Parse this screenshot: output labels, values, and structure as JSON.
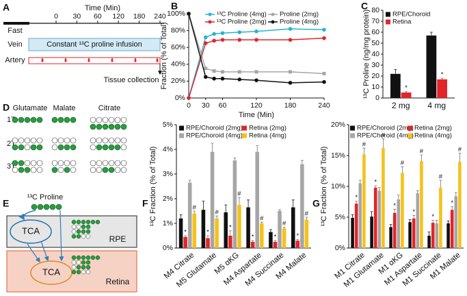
{
  "panel_labels": [
    "A",
    "B",
    "C",
    "D",
    "E",
    "F",
    "G"
  ],
  "timeline": {
    "title": "Time (Min)",
    "ticks": [
      0,
      30,
      60,
      120,
      180,
      240
    ],
    "fast": "Fast",
    "vein": "Vein",
    "infusion": "Constant ¹³C proline infusion",
    "artery": "Artery",
    "collection": "Tissue collection"
  },
  "labeling": {
    "columns": [
      "Glutamate",
      "Malate",
      "Citrate"
    ],
    "rows": [
      "1T",
      "2T",
      "3T"
    ]
  },
  "schematic": {
    "tracer": "¹³C Proline",
    "compartments": [
      {
        "name": "RPE",
        "node": "TCA"
      },
      {
        "name": "Retina",
        "node": "TCA"
      }
    ]
  },
  "chart_data": [
    {
      "type": "line",
      "xlabel": "Time (Min)",
      "ylabel": "Fraction (% of Total)",
      "x": [
        0,
        30,
        45,
        60,
        90,
        120,
        180,
        240
      ],
      "xlim": [
        0,
        240
      ],
      "xticks": [
        0,
        30,
        60,
        120,
        180,
        240
      ],
      "ylim": [
        0,
        100
      ],
      "yticks": [
        {
          "value": 0,
          "label": "0%"
        },
        {
          "value": 20,
          "label": "20%"
        },
        {
          "value": 40,
          "label": "40%"
        },
        {
          "value": 60,
          "label": "60%"
        },
        {
          "value": 80,
          "label": "80%"
        },
        {
          "value": 100,
          "label": "100%"
        }
      ],
      "series": [
        {
          "name": "¹³C Proline (4mg)",
          "color": "#27b4d3",
          "values": [
            0,
            72,
            76,
            77,
            78,
            79,
            82,
            81
          ]
        },
        {
          "name": "Proline (2mg)",
          "color": "#a6a6a6",
          "values": [
            100,
            35,
            32,
            31,
            31,
            31,
            31,
            29
          ]
        },
        {
          "name": "¹³C Proline (2mg)",
          "color": "#e3242b",
          "values": [
            0,
            65,
            68,
            69,
            69,
            69,
            69,
            71
          ]
        },
        {
          "name": "Proline (4mg)",
          "color": "#111111",
          "values": [
            100,
            25,
            23,
            23,
            22,
            21,
            18,
            19
          ]
        }
      ]
    },
    {
      "type": "bar",
      "ylabel": "¹³C Proline (ng/mg protein)",
      "categories": [
        "2 mg",
        "4 mg"
      ],
      "ylim": [
        0,
        80
      ],
      "yticks": [
        0,
        10,
        20,
        30,
        40,
        50,
        60,
        70,
        80
      ],
      "series": [
        {
          "name": "RPE/Choroid",
          "color": "#111111",
          "values": [
            22,
            57
          ],
          "errors": [
            4,
            3
          ]
        },
        {
          "name": "Retina",
          "color": "#e3242b",
          "values": [
            5,
            17
          ],
          "errors": [
            1,
            1
          ],
          "marker": "*"
        }
      ]
    },
    {
      "type": "bar",
      "ylabel": "¹³C Fraction (% of Total)",
      "categories": [
        "M4 Citrate",
        "M5 Glutamate",
        "M5 αKG",
        "M4 Aspartate",
        "M4 Succinate",
        "M4 Malate"
      ],
      "ylim": [
        0,
        5
      ],
      "yticks": [
        {
          "value": 0,
          "label": "0%"
        },
        {
          "value": 1,
          "label": "1%"
        },
        {
          "value": 2,
          "label": "2%"
        },
        {
          "value": 3,
          "label": "3%"
        },
        {
          "value": 4,
          "label": "4%"
        },
        {
          "value": 5,
          "label": "5%"
        }
      ],
      "series": [
        {
          "name": "RPE/Choroid (2mg)",
          "color": "#111111",
          "values": [
            1.2,
            1.55,
            1.45,
            1.65,
            0.65,
            1.65
          ],
          "errors": [
            0.15,
            0.35,
            0.3,
            0.3,
            0.1,
            0.3
          ]
        },
        {
          "name": "Retina (2mg)",
          "color": "#e3242b",
          "values": [
            0.45,
            0.4,
            0.5,
            0.25,
            0.25,
            0.3
          ],
          "errors": [
            0.05,
            0.1,
            0.2,
            0.05,
            0.05,
            0.05
          ],
          "marker": "*"
        },
        {
          "name": "RPE/Choroid (4mg)",
          "color": "#a6a6a6",
          "values": [
            2.65,
            3.9,
            3.55,
            3.9,
            1.5,
            3.4
          ],
          "errors": [
            0.1,
            0.35,
            0.1,
            0.25,
            0.05,
            0.15
          ]
        },
        {
          "name": "Retina (4mg)",
          "color": "#f5c21b",
          "values": [
            1.4,
            1.2,
            1.75,
            1.0,
            0.8,
            1.15
          ],
          "errors": [
            0.1,
            0.1,
            0.3,
            0.05,
            0.05,
            0.1
          ],
          "marker": "#"
        }
      ]
    },
    {
      "type": "bar",
      "ylabel": "¹³C Fraction (% of Total)",
      "categories": [
        "M1 Citrate",
        "M1 Glutamate",
        "M1 αKG",
        "M1 Aspartate",
        "M1 Succinate",
        "M1 Malate"
      ],
      "ylim": [
        0,
        20
      ],
      "yticks": [
        {
          "value": 0,
          "label": "0%"
        },
        {
          "value": 5,
          "label": "5%"
        },
        {
          "value": 10,
          "label": "10%"
        },
        {
          "value": 15,
          "label": "15%"
        },
        {
          "value": 20,
          "label": "20%"
        }
      ],
      "series": [
        {
          "name": "RPE/Choroid (2mg)",
          "color": "#111111",
          "values": [
            4.9,
            5.1,
            3.4,
            4.2,
            2.0,
            4.0
          ],
          "errors": [
            0.5,
            0.8,
            0.4,
            0.4,
            0.6,
            0.4
          ]
        },
        {
          "name": "Retina (2mg)",
          "color": "#e3242b",
          "values": [
            7.2,
            9.8,
            5.7,
            4.8,
            4.1,
            6.2
          ],
          "errors": [
            0.4,
            0.3,
            0.6,
            0.5,
            0.4,
            0.5
          ],
          "marker": "*"
        },
        {
          "name": "RPE/Choroid (4mg)",
          "color": "#a6a6a6",
          "values": [
            10.5,
            9.3,
            7.9,
            8.9,
            4.0,
            8.4
          ],
          "errors": [
            0.5,
            0.5,
            0.7,
            0.4,
            0.5,
            0.6
          ]
        },
        {
          "name": "Retina (4mg)",
          "color": "#f5c21b",
          "values": [
            15.2,
            16.2,
            12.2,
            14.1,
            9.8,
            14.0
          ],
          "errors": [
            1.0,
            1.5,
            1.0,
            1.0,
            1.2,
            1.4
          ],
          "marker": "#"
        }
      ]
    }
  ]
}
